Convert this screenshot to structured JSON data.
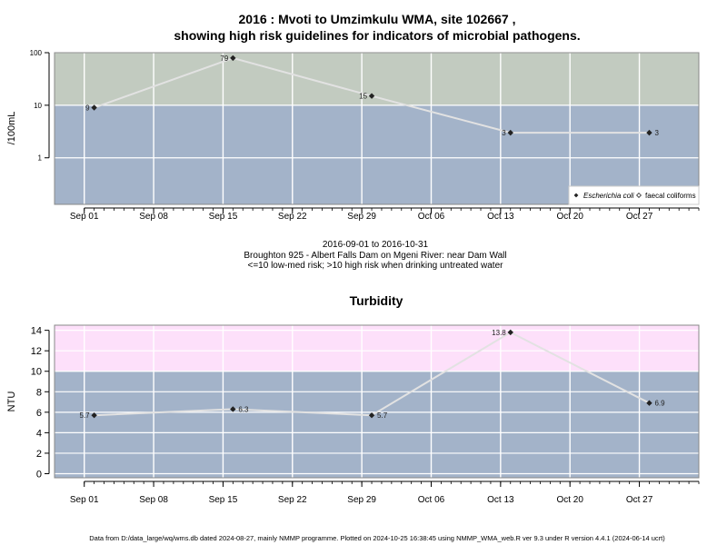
{
  "title_line1": "2016 : Mvoti to Umzimkulu WMA, site 102667 ,",
  "title_line2": "showing high risk guidelines for indicators of microbial pathogens.",
  "subtitle_line1": "2016-09-01 to 2016-10-31",
  "subtitle_line2": "Broughton 925 - Albert Falls Dam on Mgeni River: near Dam Wall",
  "subtitle_line3": "<=10 low-med risk; >10 high risk when drinking untreated water",
  "footer": "Data from D:/data_large/wq/wms.db dated 2024-08-27, mainly NMMP programme. Plotted on 2024-10-25 16:38:45 using NMMP_WMA_web.R ver 9.3 under R version 4.4.1 (2024-06-14 ucrt)",
  "colors": {
    "low_risk_band": "#a3b3c9",
    "high_risk_band_microbial": "#c2cbc0",
    "high_risk_band_turbidity": "#fde0fa",
    "series_line": "#e2e2e2",
    "marker": "#222222",
    "grid": "#ffffff"
  },
  "chart_data": [
    {
      "type": "line",
      "title": "",
      "xlabel": "",
      "ylabel": "/100mL",
      "y_scale": "log",
      "ylim": [
        0.13,
        100
      ],
      "xlim": [
        "2016-08-29",
        "2016-11-02"
      ],
      "x_ticks": [
        "Sep 01",
        "Sep 08",
        "Sep 15",
        "Sep 22",
        "Sep 29",
        "Oct 06",
        "Oct 13",
        "Oct 20",
        "Oct 27"
      ],
      "y_ticks": [
        "1",
        "10",
        "100"
      ],
      "threshold": 10,
      "grid": true,
      "legend_position": "bottom-right",
      "series": [
        {
          "name": "Escherichia coli",
          "marker": "filled-diamond",
          "x": [
            "2016-09-02",
            "2016-09-16",
            "2016-09-30",
            "2016-10-14",
            "2016-10-28"
          ],
          "values": [
            9,
            79,
            15,
            3,
            3
          ],
          "labels": [
            "9",
            "79",
            "15",
            "3",
            "3"
          ],
          "label_side": [
            "left",
            "left",
            "left",
            "left",
            "right"
          ]
        },
        {
          "name": "faecal coliforms",
          "marker": "open-diamond",
          "x": [],
          "values": [],
          "labels": []
        }
      ]
    },
    {
      "type": "line",
      "title": "Turbidity",
      "xlabel": "",
      "ylabel": "NTU",
      "ylim": [
        -0.4,
        14.5
      ],
      "xlim": [
        "2016-08-29",
        "2016-11-02"
      ],
      "x_ticks": [
        "Sep 01",
        "Sep 08",
        "Sep 15",
        "Sep 22",
        "Sep 29",
        "Oct 06",
        "Oct 13",
        "Oct 20",
        "Oct 27"
      ],
      "y_ticks": [
        "0",
        "2",
        "4",
        "6",
        "8",
        "10",
        "12",
        "14"
      ],
      "threshold": 10,
      "grid": true,
      "series": [
        {
          "marker": "filled-diamond",
          "x": [
            "2016-09-02",
            "2016-09-16",
            "2016-09-30",
            "2016-10-14",
            "2016-10-28"
          ],
          "values": [
            5.7,
            6.3,
            5.7,
            13.8,
            6.9
          ],
          "labels": [
            "5.7",
            "6.3",
            "5.7",
            "13.8",
            "6.9"
          ],
          "label_side": [
            "left",
            "right",
            "right",
            "left",
            "right"
          ]
        }
      ]
    }
  ]
}
